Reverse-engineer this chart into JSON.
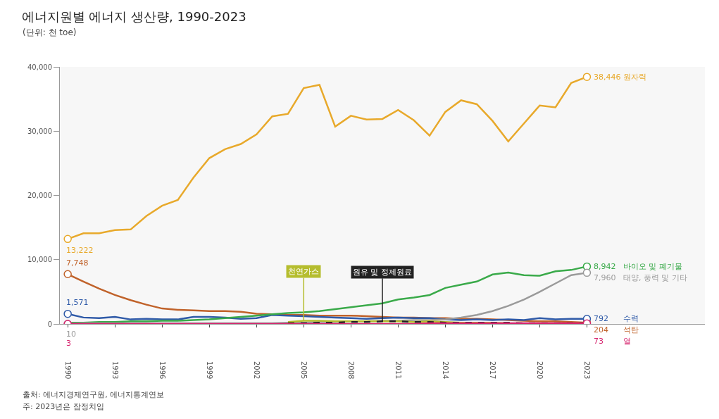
{
  "chart_data": {
    "type": "line",
    "title": "에너지원별 에너지 생산량, 1990-2023",
    "subtitle": "(단위: 천 toe)",
    "annotations": [
      "출처: 에너지경제연구원, 에너지통계연보",
      "주: 2023년은 잠정치임"
    ],
    "x": [
      1990,
      1991,
      1992,
      1993,
      1994,
      1995,
      1996,
      1997,
      1998,
      1999,
      2000,
      2001,
      2002,
      2003,
      2004,
      2005,
      2006,
      2007,
      2008,
      2009,
      2010,
      2011,
      2012,
      2013,
      2014,
      2015,
      2016,
      2017,
      2018,
      2019,
      2020,
      2021,
      2022,
      2023
    ],
    "series": [
      {
        "name": "원자력",
        "color": "#e8a92b",
        "values": [
          13222,
          14100,
          14100,
          14600,
          14700,
          16800,
          18400,
          19300,
          22800,
          25800,
          27200,
          28000,
          29500,
          32300,
          32700,
          36700,
          37200,
          30700,
          32400,
          31800,
          31900,
          33300,
          31700,
          29300,
          33000,
          34800,
          34200,
          31600,
          28400,
          31200,
          34000,
          33700,
          37500,
          38446
        ],
        "value_labels": [
          "13,222",
          null,
          null,
          null,
          null,
          null,
          null,
          null,
          null,
          null,
          null,
          null,
          null,
          null,
          null,
          null,
          null,
          null,
          null,
          null,
          null,
          null,
          null,
          null,
          null,
          null,
          null,
          null,
          null,
          null,
          null,
          null,
          null,
          "38,446"
        ]
      },
      {
        "name": "석탄",
        "color": "#c0622a",
        "values": [
          7748,
          6600,
          5500,
          4500,
          3700,
          3000,
          2400,
          2200,
          2100,
          2000,
          2000,
          1900,
          1600,
          1500,
          1400,
          1400,
          1300,
          1300,
          1300,
          1200,
          1100,
          1000,
          1000,
          900,
          900,
          800,
          800,
          700,
          600,
          500,
          400,
          400,
          300,
          204
        ],
        "value_labels": [
          "7,748",
          null,
          null,
          null,
          null,
          null,
          null,
          null,
          null,
          null,
          null,
          null,
          null,
          null,
          null,
          null,
          null,
          null,
          null,
          null,
          null,
          null,
          null,
          null,
          null,
          null,
          null,
          null,
          null,
          null,
          null,
          null,
          null,
          "204"
        ]
      },
      {
        "name": "수력",
        "color": "#2f5aa8",
        "values": [
          1571,
          1000,
          900,
          1100,
          700,
          800,
          700,
          700,
          1100,
          1100,
          1000,
          800,
          900,
          1400,
          1300,
          1200,
          1100,
          1000,
          900,
          800,
          900,
          1000,
          900,
          900,
          700,
          600,
          700,
          600,
          700,
          600,
          900,
          700,
          800,
          792
        ],
        "value_labels": [
          "1,571",
          null,
          null,
          null,
          null,
          null,
          null,
          null,
          null,
          null,
          null,
          null,
          null,
          null,
          null,
          null,
          null,
          null,
          null,
          null,
          null,
          null,
          null,
          null,
          null,
          null,
          null,
          null,
          null,
          null,
          null,
          null,
          null,
          "792"
        ]
      },
      {
        "name": "바이오 및 폐기물",
        "color": "#3aaa4a",
        "values": [
          200,
          200,
          300,
          300,
          400,
          400,
          500,
          500,
          600,
          700,
          900,
          1100,
          1300,
          1500,
          1700,
          1800,
          2000,
          2300,
          2600,
          2900,
          3200,
          3800,
          4100,
          4500,
          5600,
          6100,
          6600,
          7700,
          8000,
          7600,
          7500,
          8200,
          8400,
          8942
        ],
        "value_labels": [
          null,
          null,
          null,
          null,
          null,
          null,
          null,
          null,
          null,
          null,
          null,
          null,
          null,
          null,
          null,
          null,
          null,
          null,
          null,
          null,
          null,
          null,
          null,
          null,
          null,
          null,
          null,
          null,
          null,
          null,
          null,
          null,
          null,
          "8,942"
        ]
      },
      {
        "name": "태양, 풍력 및 기타",
        "color": "#9a9a9a",
        "values": [
          10,
          100,
          100,
          100,
          100,
          100,
          100,
          100,
          100,
          100,
          100,
          100,
          100,
          100,
          200,
          200,
          300,
          300,
          400,
          400,
          500,
          500,
          600,
          600,
          700,
          1000,
          1400,
          2000,
          2800,
          3800,
          5000,
          6300,
          7600,
          7960
        ],
        "value_labels": [
          "10",
          null,
          null,
          null,
          null,
          null,
          null,
          null,
          null,
          null,
          null,
          null,
          null,
          null,
          null,
          null,
          null,
          null,
          null,
          null,
          null,
          null,
          null,
          null,
          null,
          null,
          null,
          null,
          null,
          null,
          null,
          null,
          null,
          "7,960"
        ]
      },
      {
        "name": "천연가스",
        "color": "#b5bd2e",
        "values": [
          null,
          null,
          null,
          null,
          null,
          null,
          null,
          null,
          null,
          null,
          null,
          null,
          null,
          null,
          300,
          500,
          500,
          400,
          400,
          400,
          400,
          400,
          300,
          400,
          300,
          200,
          200,
          200,
          100,
          null,
          null,
          null,
          null,
          null
        ]
      },
      {
        "name": "원유 및 정제원료",
        "color": "#222222",
        "line_style": "dashed",
        "values": [
          null,
          null,
          null,
          null,
          null,
          null,
          null,
          null,
          null,
          null,
          null,
          null,
          null,
          null,
          100,
          100,
          200,
          200,
          300,
          300,
          400,
          400,
          300,
          300,
          200,
          200,
          200,
          200,
          200,
          100,
          100,
          100,
          100,
          100
        ]
      },
      {
        "name": "열",
        "color": "#d6246e",
        "values": [
          3,
          0,
          0,
          0,
          0,
          0,
          0,
          0,
          0,
          0,
          0,
          0,
          0,
          0,
          0,
          0,
          0,
          0,
          0,
          0,
          0,
          0,
          0,
          100,
          100,
          100,
          100,
          100,
          100,
          100,
          100,
          100,
          100,
          73
        ],
        "value_labels": [
          "3",
          null,
          null,
          null,
          null,
          null,
          null,
          null,
          null,
          null,
          null,
          null,
          null,
          null,
          null,
          null,
          null,
          null,
          null,
          null,
          null,
          null,
          null,
          null,
          null,
          null,
          null,
          null,
          null,
          null,
          null,
          null,
          null,
          "73"
        ]
      }
    ],
    "xlim": [
      1989.5,
      2030.5
    ],
    "ylim": [
      0,
      40000
    ],
    "xticks": [
      1990,
      1993,
      1996,
      1999,
      2002,
      2005,
      2008,
      2011,
      2014,
      2017,
      2020,
      2023
    ],
    "yticks": [
      {
        "value": 0,
        "label": "0"
      },
      {
        "value": 10000,
        "label": "10,000"
      },
      {
        "value": 20000,
        "label": "20,000"
      },
      {
        "value": 30000,
        "label": "30,000"
      },
      {
        "value": 40000,
        "label": "40,000"
      }
    ],
    "grid": false,
    "legend": false,
    "line_style": "solid"
  }
}
